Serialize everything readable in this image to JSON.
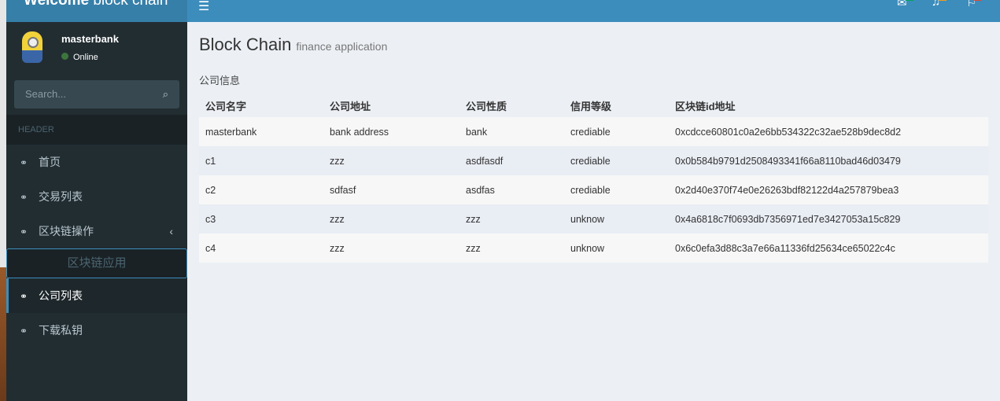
{
  "app": {
    "logo_bold": "Welcome",
    "logo_light": " block chain"
  },
  "user": {
    "name": "masterbank",
    "status": "Online"
  },
  "search": {
    "placeholder": "Search..."
  },
  "sidebar": {
    "header": "HEADER",
    "items": [
      {
        "label": "首页"
      },
      {
        "label": "交易列表"
      },
      {
        "label": "区块链操作"
      }
    ],
    "section": "区块链应用",
    "sub_items": [
      {
        "label": "公司列表",
        "active": true
      },
      {
        "label": "下载私钥"
      }
    ]
  },
  "page": {
    "title": "Block Chain",
    "subtitle": "finance application",
    "box_title": "公司信息"
  },
  "table": {
    "headers": [
      "公司名字",
      "公司地址",
      "公司性质",
      "信用等级",
      "区块链id地址"
    ],
    "rows": [
      [
        "masterbank",
        "bank address",
        "bank",
        "crediable",
        "0xcdcce60801c0a2e6bb534322c32ae528b9dec8d2"
      ],
      [
        "c1",
        "zzz",
        "asdfasdf",
        "crediable",
        "0x0b584b9791d2508493341f66a8110bad46d03479"
      ],
      [
        "c2",
        "sdfasf",
        "asdfas",
        "crediable",
        "0x2d40e370f74e0e26263bdf82122d4a257879bea3"
      ],
      [
        "c3",
        "zzz",
        "zzz",
        "unknow",
        "0x4a6818c7f0693db7356971ed7e3427053a15c829"
      ],
      [
        "c4",
        "zzz",
        "zzz",
        "unknow",
        "0x6c0efa3d88c3a7e66a11336fd25634ce65022c4c"
      ]
    ]
  },
  "colors": {
    "header": "#3c8dbc",
    "sidebar": "#222d32",
    "accent": "#3c8dbc"
  }
}
